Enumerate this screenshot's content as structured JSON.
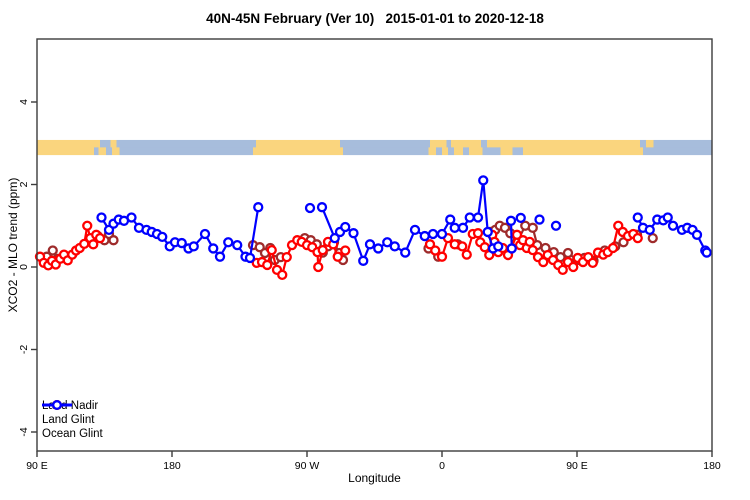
{
  "chart_data": {
    "type": "scatter",
    "title": "40N-45N February (Ver 10)   2015-01-01 to 2020-12-18",
    "xlabel": "Longitude",
    "ylabel": "XCO2 - MLO trend (ppm)",
    "x_axis": {
      "domain_deg": [
        90,
        540
      ],
      "ticks": [
        {
          "deg": 90,
          "label": "90 E"
        },
        {
          "deg": 180,
          "label": "180"
        },
        {
          "deg": 270,
          "label": "90 W"
        },
        {
          "deg": 360,
          "label": "0"
        },
        {
          "deg": 450,
          "label": "90 E"
        },
        {
          "deg": 540,
          "label": "180"
        }
      ]
    },
    "y_axis": {
      "ylim": [
        -4.5,
        5.1
      ],
      "ticks": [
        {
          "v": 4,
          "label": "4"
        },
        {
          "v": 2,
          "label": "2"
        },
        {
          "v": 0,
          "label": "0"
        },
        {
          "v": -2,
          "label": "-2"
        },
        {
          "v": -4,
          "label": "-4"
        }
      ]
    },
    "grid": false,
    "legend_position": "bottom-left",
    "frame_color": "#3c3c3c",
    "map_band": {
      "y_top_value": 3.08,
      "y_bottom_value": 2.72,
      "land_color": "#FAD57E",
      "ocean_color": "#A7BDDC",
      "rows": [
        {
          "name": "lat-42p5-45N",
          "segments": [
            [
              90,
              132,
              "land"
            ],
            [
              132,
              139,
              "ocean"
            ],
            [
              139,
              143,
              "land"
            ],
            [
              143,
              236,
              "ocean"
            ],
            [
              236,
              292,
              "land"
            ],
            [
              292,
              352,
              "ocean"
            ],
            [
              352,
              363,
              "land"
            ],
            [
              363,
              366,
              "ocean"
            ],
            [
              366,
              386,
              "land"
            ],
            [
              386,
              390,
              "ocean"
            ],
            [
              390,
              492,
              "land"
            ],
            [
              492,
              496,
              "ocean"
            ],
            [
              496,
              501,
              "land"
            ],
            [
              501,
              540,
              "ocean"
            ]
          ]
        },
        {
          "name": "lat-40-42p5N",
          "segments": [
            [
              90,
              128,
              "land"
            ],
            [
              128,
              131,
              "ocean"
            ],
            [
              131,
              136,
              "land"
            ],
            [
              136,
              140,
              "ocean"
            ],
            [
              140,
              145,
              "land"
            ],
            [
              145,
              234,
              "ocean"
            ],
            [
              234,
              294,
              "land"
            ],
            [
              294,
              351,
              "ocean"
            ],
            [
              351,
              356,
              "land"
            ],
            [
              356,
              360,
              "ocean"
            ],
            [
              360,
              364,
              "land"
            ],
            [
              364,
              368,
              "ocean"
            ],
            [
              368,
              374,
              "land"
            ],
            [
              374,
              378,
              "ocean"
            ],
            [
              378,
              387,
              "land"
            ],
            [
              387,
              399,
              "ocean"
            ],
            [
              399,
              407,
              "land"
            ],
            [
              407,
              414,
              "ocean"
            ],
            [
              414,
              494,
              "land"
            ],
            [
              494,
              540,
              "ocean"
            ]
          ]
        }
      ]
    },
    "series": [
      {
        "name": "Land Nadir",
        "color": "#9E2B2B",
        "groups": [
          [
            [
              96.5,
              0.25
            ],
            [
              100.5,
              0.4
            ],
            [
              104,
              0.2
            ]
          ],
          [
            [
              127.5,
              0.7
            ],
            [
              130.5,
              0.75
            ],
            [
              135,
              0.65
            ],
            [
              138,
              0.8
            ],
            [
              141,
              0.65
            ]
          ],
          [
            [
              234,
              0.53
            ],
            [
              238.5,
              0.48
            ],
            [
              242,
              0.34
            ],
            [
              245.5,
              0.46
            ],
            [
              248.5,
              0.17
            ],
            [
              252.5,
              0.24
            ]
          ],
          [
            [
              268.5,
              0.7
            ],
            [
              272.5,
              0.65
            ],
            [
              276.5,
              0.55
            ],
            [
              280.5,
              0.35
            ],
            [
              284,
              0.5
            ],
            [
              288,
              0.6
            ],
            [
              291.5,
              0.34
            ],
            [
              294,
              0.17
            ]
          ],
          [
            [
              351,
              0.45
            ],
            [
              357.5,
              0.25
            ]
          ],
          [
            [
              370.5,
              0.55
            ]
          ],
          [
            [
              392,
              0.85
            ],
            [
              395.5,
              0.9
            ],
            [
              398.5,
              1.0
            ],
            [
              402,
              0.95
            ],
            [
              405.5,
              0.82
            ],
            [
              410,
              0.6
            ],
            [
              415.5,
              1.0
            ],
            [
              420.5,
              0.95
            ],
            [
              423.5,
              0.53
            ],
            [
              429,
              0.46
            ],
            [
              434.5,
              0.36
            ],
            [
              439,
              0.24
            ],
            [
              444,
              0.34
            ],
            [
              450,
              0.17
            ],
            [
              455,
              0.22
            ],
            [
              461,
              0.15
            ],
            [
              468.5,
              0.4
            ],
            [
              475.5,
              0.5
            ],
            [
              481,
              0.6
            ],
            [
              490,
              0.78
            ]
          ],
          [
            [
              500.5,
              0.7
            ]
          ]
        ]
      },
      {
        "name": "Land Glint",
        "color": "#FF0000",
        "groups": [
          [
            [
              92,
              0.25
            ],
            [
              94.5,
              0.1
            ],
            [
              97.5,
              0.04
            ],
            [
              100,
              0.15
            ],
            [
              102.5,
              0.06
            ],
            [
              105.5,
              0.2
            ],
            [
              108,
              0.3
            ],
            [
              110.5,
              0.16
            ],
            [
              113.5,
              0.3
            ],
            [
              116,
              0.4
            ],
            [
              118.5,
              0.46
            ],
            [
              121.5,
              0.56
            ],
            [
              123.5,
              1.0
            ],
            [
              125.5,
              0.7
            ],
            [
              127.5,
              0.55
            ],
            [
              129.5,
              0.78
            ],
            [
              132,
              0.7
            ]
          ],
          [
            [
              236.5,
              0.1
            ],
            [
              240,
              0.12
            ],
            [
              243.5,
              0.05
            ],
            [
              246.5,
              0.41
            ],
            [
              250,
              -0.07
            ],
            [
              253.5,
              -0.19
            ],
            [
              256.5,
              0.24
            ],
            [
              260,
              0.53
            ],
            [
              263.5,
              0.65
            ],
            [
              266.5,
              0.61
            ],
            [
              270,
              0.53
            ],
            [
              273.5,
              0.48
            ],
            [
              277,
              0.36
            ],
            [
              277.5,
              0.0
            ],
            [
              280.5,
              0.41
            ],
            [
              284,
              0.61
            ],
            [
              287.5,
              0.55
            ],
            [
              290.5,
              0.25
            ],
            [
              295.5,
              0.4
            ]
          ],
          [
            [
              352,
              0.55
            ],
            [
              355.5,
              0.4
            ],
            [
              360,
              0.25
            ],
            [
              364,
              0.7
            ],
            [
              368.5,
              0.55
            ],
            [
              373.5,
              0.5
            ],
            [
              376.5,
              0.3
            ],
            [
              380.5,
              0.8
            ],
            [
              384,
              0.82
            ],
            [
              385.5,
              0.6
            ],
            [
              388.5,
              0.48
            ],
            [
              391.5,
              0.29
            ],
            [
              393.5,
              0.78
            ],
            [
              395,
              0.61
            ],
            [
              397.5,
              0.36
            ],
            [
              400.5,
              0.46
            ],
            [
              404,
              0.29
            ],
            [
              410,
              0.78
            ],
            [
              412,
              0.53
            ],
            [
              414,
              0.65
            ],
            [
              416.5,
              0.46
            ],
            [
              418.5,
              0.61
            ],
            [
              420.5,
              0.41
            ],
            [
              424,
              0.24
            ],
            [
              427.5,
              0.12
            ],
            [
              430.5,
              0.29
            ],
            [
              434,
              0.17
            ],
            [
              437.5,
              0.05
            ],
            [
              440.5,
              -0.07
            ],
            [
              444,
              0.12
            ],
            [
              447.5,
              0.0
            ],
            [
              450.5,
              0.22
            ],
            [
              454,
              0.12
            ],
            [
              457.5,
              0.24
            ],
            [
              460.5,
              0.1
            ],
            [
              464,
              0.35
            ],
            [
              467.5,
              0.3
            ],
            [
              470.5,
              0.36
            ],
            [
              474,
              0.46
            ],
            [
              477.5,
              1.0
            ],
            [
              480.5,
              0.85
            ],
            [
              484,
              0.75
            ],
            [
              487.5,
              0.8
            ],
            [
              490.5,
              0.7
            ]
          ]
        ]
      },
      {
        "name": "Ocean Glint",
        "color": "#0000FF",
        "groups": [
          [
            [
              133,
              1.2
            ],
            [
              138,
              0.9
            ],
            [
              141,
              1.05
            ],
            [
              144.5,
              1.15
            ],
            [
              148,
              1.12
            ],
            [
              153,
              1.2
            ],
            [
              158,
              0.95
            ],
            [
              163,
              0.9
            ],
            [
              166.5,
              0.85
            ],
            [
              170,
              0.8
            ],
            [
              173.5,
              0.73
            ],
            [
              178.5,
              0.5
            ],
            [
              182,
              0.6
            ],
            [
              186.5,
              0.58
            ],
            [
              191,
              0.45
            ],
            [
              194.5,
              0.5
            ],
            [
              202,
              0.8
            ],
            [
              207.5,
              0.45
            ],
            [
              212,
              0.25
            ],
            [
              217.5,
              0.6
            ],
            [
              223.5,
              0.53
            ],
            [
              229,
              0.25
            ],
            [
              232,
              0.22
            ],
            [
              237.5,
              1.45
            ]
          ],
          [
            [
              272,
              1.43
            ]
          ],
          [
            [
              280,
              1.45
            ],
            [
              288.5,
              0.7
            ],
            [
              292,
              0.85
            ],
            [
              295.5,
              0.97
            ],
            [
              301,
              0.82
            ],
            [
              307.5,
              0.15
            ],
            [
              312,
              0.55
            ],
            [
              317.5,
              0.45
            ],
            [
              323.5,
              0.6
            ],
            [
              328.5,
              0.5
            ],
            [
              335.5,
              0.35
            ],
            [
              342,
              0.9
            ],
            [
              348.5,
              0.75
            ],
            [
              354,
              0.8
            ],
            [
              360,
              0.8
            ],
            [
              365.5,
              1.15
            ],
            [
              368.5,
              0.95
            ],
            [
              374,
              0.95
            ],
            [
              378.5,
              1.2
            ],
            [
              384,
              1.2
            ],
            [
              387.5,
              2.1
            ],
            [
              390.5,
              0.85
            ],
            [
              394,
              0.45
            ],
            [
              397.5,
              0.5
            ]
          ],
          [
            [
              406,
              1.12
            ],
            [
              406.5,
              0.45
            ]
          ],
          [
            [
              412.5,
              1.19
            ]
          ],
          [
            [
              425,
              1.15
            ]
          ],
          [
            [
              436,
              1.0
            ]
          ],
          [
            [
              490.5,
              1.2
            ],
            [
              494,
              0.95
            ],
            [
              498.5,
              0.9
            ],
            [
              503.5,
              1.15
            ],
            [
              507.5,
              1.13
            ],
            [
              510.5,
              1.2
            ],
            [
              514,
              1.0
            ],
            [
              520,
              0.9
            ],
            [
              523.5,
              0.95
            ],
            [
              527,
              0.9
            ],
            [
              530,
              0.78
            ],
            [
              535.5,
              0.4
            ],
            [
              536.5,
              0.35
            ]
          ]
        ]
      }
    ]
  }
}
